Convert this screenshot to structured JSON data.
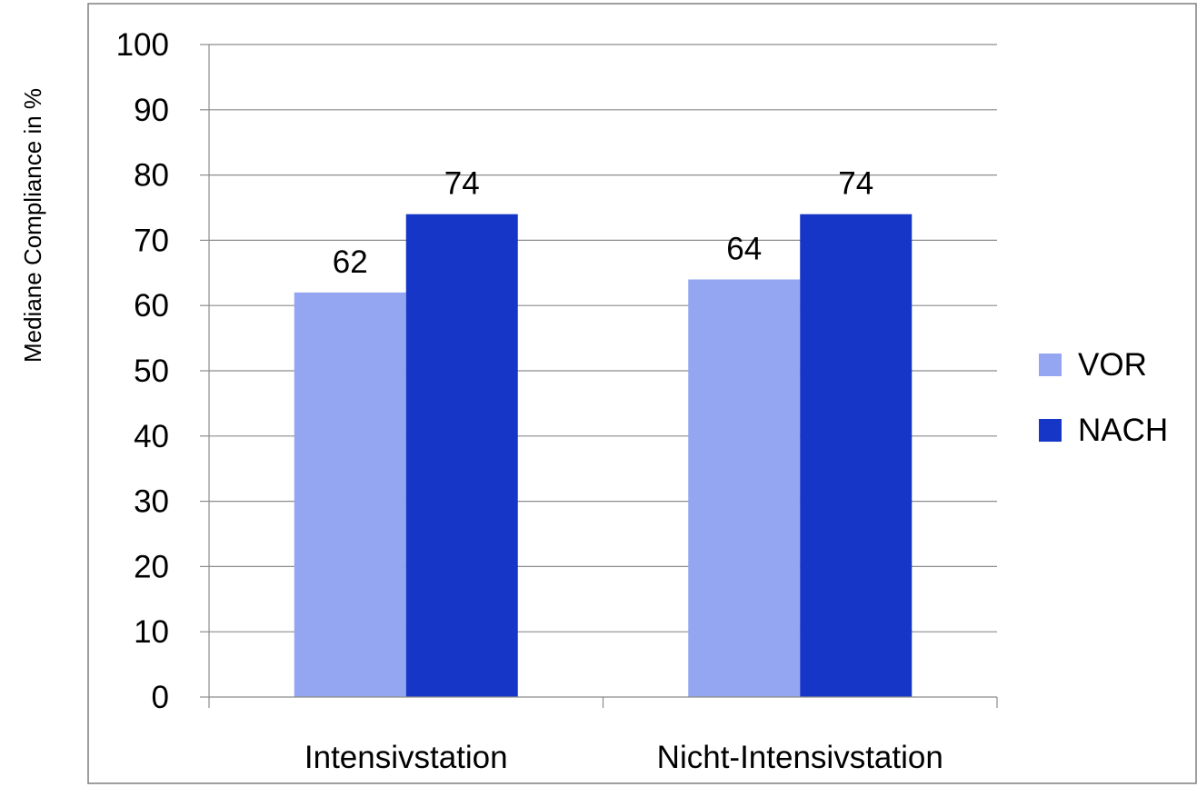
{
  "chart_data": {
    "type": "bar",
    "title": "",
    "xlabel": "",
    "ylabel": "Mediane Compliance in %",
    "categories": [
      "Intensivstation",
      "Nicht-Intensivstation"
    ],
    "series": [
      {
        "name": "VOR",
        "values": [
          62,
          64
        ],
        "color": "#94A6F2"
      },
      {
        "name": "NACH",
        "values": [
          74,
          74
        ],
        "color": "#1536C7"
      }
    ],
    "ylim": [
      0,
      100
    ],
    "yticks": [
      0,
      10,
      20,
      30,
      40,
      50,
      60,
      70,
      80,
      90,
      100
    ],
    "grid": true,
    "legend_position": "right",
    "data_labels": true
  }
}
